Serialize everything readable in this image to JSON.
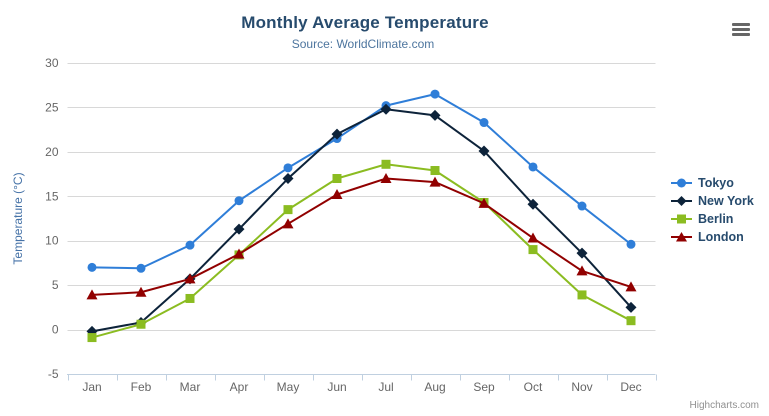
{
  "header": {
    "title": "Monthly Average Temperature",
    "subtitle": "Source: WorldClimate.com"
  },
  "menu": {
    "icon": "hamburger-icon",
    "tooltip": "Chart context menu"
  },
  "credits": "Highcharts.com",
  "colors": {
    "title": "#274b6d",
    "subtitle": "#4d759e",
    "axis_labels": "#666666",
    "axis_title": "#4572a7",
    "grid_line": "#d8d8d8",
    "axis_line": "#c0d0e0",
    "legend_text": "#274b6d",
    "menu_icon": "#666666",
    "credits_text": "#909090"
  },
  "chart_data": {
    "type": "line",
    "title": "Monthly Average Temperature",
    "subtitle": "Source: WorldClimate.com",
    "xlabel": "",
    "ylabel": "Temperature (°C)",
    "ylim": [
      -5,
      30
    ],
    "ytick_interval": 5,
    "yticks": [
      -5,
      0,
      5,
      10,
      15,
      20,
      25,
      30
    ],
    "grid": true,
    "legend_position": "right",
    "categories": [
      "Jan",
      "Feb",
      "Mar",
      "Apr",
      "May",
      "Jun",
      "Jul",
      "Aug",
      "Sep",
      "Oct",
      "Nov",
      "Dec"
    ],
    "series": [
      {
        "name": "Tokyo",
        "color": "#2f7ed8",
        "marker": "circle",
        "values": [
          7.0,
          6.9,
          9.5,
          14.5,
          18.2,
          21.5,
          25.2,
          26.5,
          23.3,
          18.3,
          13.9,
          9.6
        ]
      },
      {
        "name": "New York",
        "color": "#0d233a",
        "marker": "diamond",
        "values": [
          -0.2,
          0.8,
          5.7,
          11.3,
          17.0,
          22.0,
          24.8,
          24.1,
          20.1,
          14.1,
          8.6,
          2.5
        ]
      },
      {
        "name": "Berlin",
        "color": "#8bbc21",
        "marker": "square",
        "values": [
          -0.9,
          0.6,
          3.5,
          8.4,
          13.5,
          17.0,
          18.6,
          17.9,
          14.3,
          9.0,
          3.9,
          1.0
        ]
      },
      {
        "name": "London",
        "color": "#910000",
        "marker": "triangle",
        "values": [
          3.9,
          4.2,
          5.7,
          8.5,
          11.9,
          15.2,
          17.0,
          16.6,
          14.2,
          10.3,
          6.6,
          4.8
        ]
      }
    ]
  }
}
